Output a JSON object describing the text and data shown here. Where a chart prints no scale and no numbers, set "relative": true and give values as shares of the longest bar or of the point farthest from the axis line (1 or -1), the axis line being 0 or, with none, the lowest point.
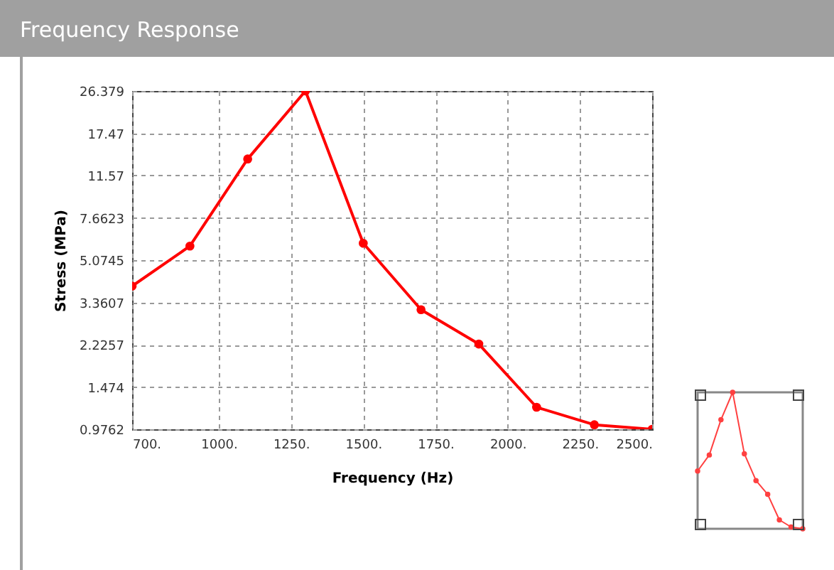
{
  "chart_data": [
    {
      "type": "line",
      "title": "Frequency Response",
      "xlabel": "Frequency (Hz)",
      "ylabel": "Stress   (MPa)",
      "x": [
        700,
        900,
        1100,
        1300,
        1500,
        1700,
        1900,
        2100,
        2300,
        2500
      ],
      "series": [
        {
          "color": "#ff0000",
          "values": [
            3.94,
            5.82,
            13.6,
            26.379,
            5.98,
            3.13,
            2.24,
            1.21,
            1.02,
            0.9762
          ]
        }
      ],
      "log": "y",
      "grid": true,
      "marker": "circle",
      "line_style": "solid",
      "xlim": [
        700,
        2500
      ],
      "xticks": [
        {
          "value": 700,
          "label": "700."
        },
        {
          "value": 1000,
          "label": "1000."
        },
        {
          "value": 1250,
          "label": "1250."
        },
        {
          "value": 1500,
          "label": "1500."
        },
        {
          "value": 1750,
          "label": "1750."
        },
        {
          "value": 2000,
          "label": "2000."
        },
        {
          "value": 2250,
          "label": "2250."
        },
        {
          "value": 2500,
          "label": "2500."
        }
      ],
      "ylim": [
        0.9762,
        26.379
      ],
      "yticks": [
        0.9762,
        1.474,
        2.2257,
        3.3607,
        5.0745,
        7.6623,
        11.57,
        17.47,
        26.379
      ]
    },
    {
      "type": "line",
      "relative": true,
      "categories": [
        null,
        null,
        null,
        null,
        null,
        null,
        null,
        null,
        null,
        null
      ],
      "series": [
        {
          "color": "#ff4040",
          "values": [
            0.423,
            0.541,
            0.799,
            1,
            0.55,
            0.353,
            0.252,
            0.065,
            0.013,
            0
          ]
        }
      ],
      "marker": "circle",
      "line_style": "solid"
    }
  ]
}
